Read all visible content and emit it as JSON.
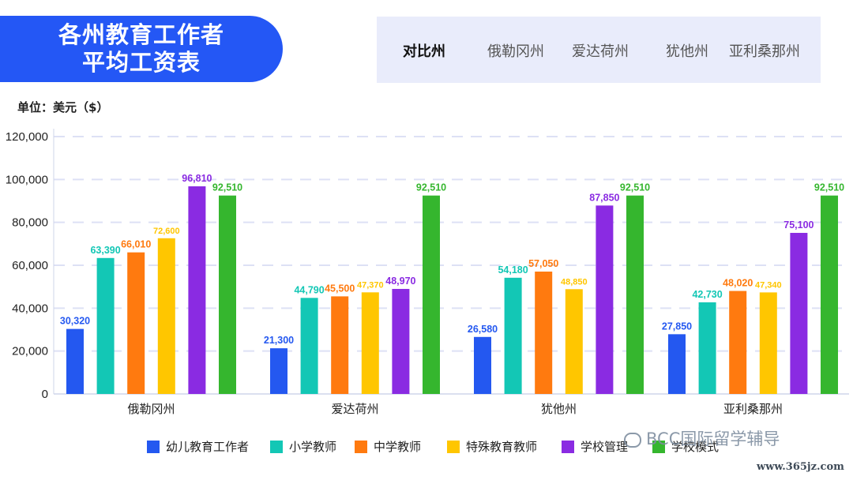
{
  "header": {
    "title_line1": "各州教育工作者",
    "title_line2": "平均工资表"
  },
  "compare": {
    "lead": "对比州",
    "states": [
      "俄勒冈州",
      "爱达荷州",
      "犹他州",
      "亚利桑那州"
    ]
  },
  "unit": "单位：美元（$）",
  "chart_data": {
    "type": "bar",
    "title": "各州教育工作者平均工资表",
    "categories": [
      "俄勒冈州",
      "爱达荷州",
      "犹他州",
      "亚利桑那州"
    ],
    "series": [
      {
        "name": "幼儿教育工作者",
        "color": "#2458f0",
        "values": [
          30320,
          21300,
          26580,
          27850
        ]
      },
      {
        "name": "小学教师",
        "color": "#13c7b5",
        "values": [
          63390,
          44790,
          54180,
          42730
        ]
      },
      {
        "name": "中学教师",
        "color": "#ff7a0f",
        "values": [
          66010,
          45500,
          57050,
          48020
        ]
      },
      {
        "name": "特殊教育教师",
        "color": "#ffc600",
        "values": [
          72600,
          47370,
          48850,
          47340
        ]
      },
      {
        "name": "学校管理",
        "color": "#8a2be2",
        "values": [
          96810,
          48970,
          87850,
          75100
        ]
      },
      {
        "name": "学校模式",
        "color": "#35b62e",
        "values": [
          92510,
          92510,
          92510,
          92510
        ]
      }
    ],
    "ylim": [
      0,
      120000
    ],
    "yticks": [
      0,
      20000,
      40000,
      60000,
      80000,
      100000,
      120000
    ],
    "ytick_labels": [
      "0",
      "20,000",
      "40,000",
      "60,000",
      "80,000",
      "100,000",
      "120,000"
    ],
    "data_labels": [
      [
        "30,320",
        "21,300",
        "26,580",
        "27,850"
      ],
      [
        "63,390",
        "44,790",
        "54,180",
        "42,730"
      ],
      [
        "66,010",
        "45,500",
        "57,050",
        "48,020"
      ],
      [
        "72,600",
        "47,370",
        "48,850",
        "47,340"
      ],
      [
        "96,810",
        "48,970",
        "87,850",
        "75,100"
      ],
      [
        "92,510",
        "92,510",
        "92,510",
        "92,510"
      ]
    ],
    "legend_labels": [
      "幼儿教育工作者",
      "小学教师",
      "中学教师",
      "特殊教育教师",
      "学校管理",
      "学校模式"
    ],
    "grid": true,
    "legend_position": "bottom"
  },
  "watermark": {
    "text": "BCC国际留学辅导",
    "site": "www.365jz.com"
  }
}
